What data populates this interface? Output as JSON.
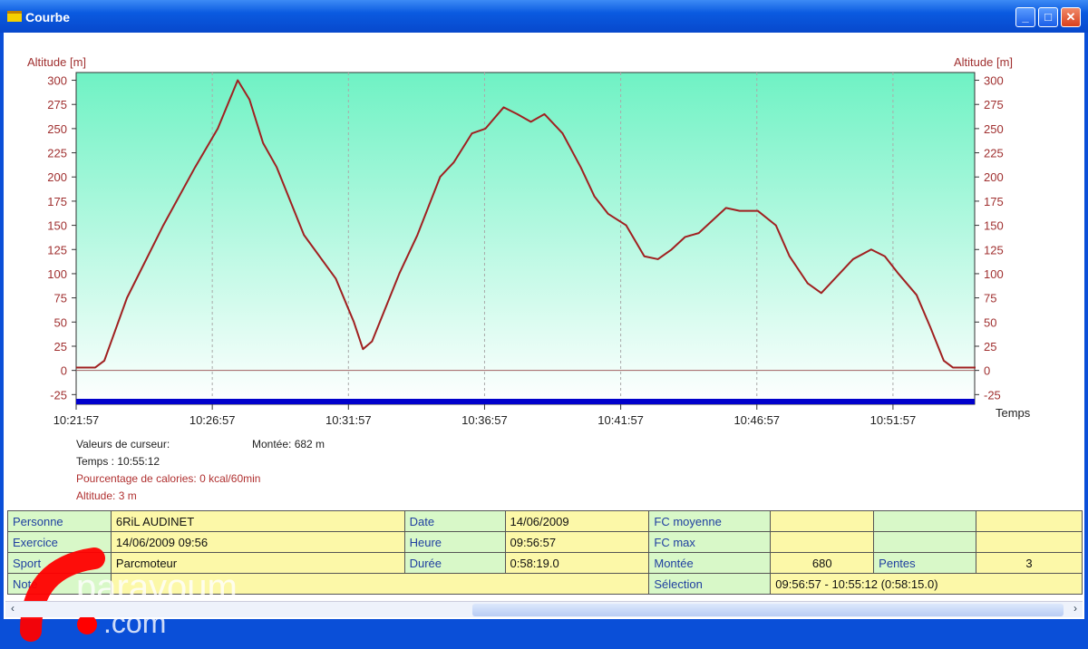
{
  "window": {
    "title": "Courbe",
    "buttons": [
      "minimize",
      "maximize",
      "close"
    ]
  },
  "chart_data": {
    "type": "line",
    "ylabel_left": "Altitude [m]",
    "ylabel_right": "Altitude [m]",
    "xlabel": "Temps",
    "ylim": [
      -35,
      308
    ],
    "yticks": [
      300,
      275,
      250,
      225,
      200,
      175,
      150,
      125,
      100,
      75,
      50,
      25,
      0,
      -25
    ],
    "xlim": [
      "10:21:57",
      "10:54:57"
    ],
    "xticks": [
      "10:21:57",
      "10:26:57",
      "10:31:57",
      "10:36:57",
      "10:41:57",
      "10:46:57",
      "10:51:57"
    ],
    "grid": "vertical dashed",
    "colors": {
      "line": "#a02020",
      "background_top": "#6ff2c4",
      "background_bottom": "#ffffff",
      "baseline": "#0000cc"
    },
    "series": [
      {
        "x": [
          "10:21:57",
          "10:22:39",
          "10:22:59",
          "10:23:49",
          "10:25:09",
          "10:26:19",
          "10:27:09",
          "10:27:53",
          "10:28:19",
          "10:28:49",
          "10:29:19",
          "10:30:19",
          "10:31:29",
          "10:32:09",
          "10:32:29",
          "10:32:49",
          "10:33:49",
          "10:34:29",
          "10:35:19",
          "10:35:49",
          "10:36:29",
          "10:36:59",
          "10:37:39",
          "10:38:09",
          "10:38:39",
          "10:39:09",
          "10:39:49",
          "10:40:29",
          "10:40:59",
          "10:41:29",
          "10:42:09",
          "10:42:49",
          "10:43:19",
          "10:43:49",
          "10:44:19",
          "10:44:49",
          "10:45:19",
          "10:45:49",
          "10:46:19",
          "10:46:59",
          "10:47:39",
          "10:48:09",
          "10:48:49",
          "10:49:19",
          "10:49:49",
          "10:50:29",
          "10:51:09",
          "10:51:39",
          "10:52:09",
          "10:52:49",
          "10:53:19",
          "10:53:49",
          "10:54:09",
          "10:54:59"
        ],
        "y": [
          3,
          3,
          10,
          75,
          150,
          210,
          250,
          300,
          280,
          235,
          210,
          140,
          95,
          50,
          22,
          30,
          100,
          140,
          200,
          215,
          245,
          250,
          272,
          265,
          257,
          265,
          245,
          210,
          180,
          162,
          150,
          118,
          115,
          125,
          138,
          142,
          155,
          168,
          165,
          165,
          150,
          118,
          90,
          80,
          95,
          115,
          125,
          118,
          100,
          78,
          45,
          10,
          3,
          3
        ]
      }
    ]
  },
  "cursor": {
    "header": "Valeurs de curseur:",
    "montee": "Montée: 682 m",
    "temps": "Temps : 10:55:12",
    "calories": "Pourcentage de calories: 0 kcal/60min",
    "altitude": "Altitude: 3 m"
  },
  "table": {
    "rows": [
      [
        "Personne",
        "6RiL AUDINET",
        "Date",
        "14/06/2009",
        "FC moyenne",
        "",
        "",
        ""
      ],
      [
        "Exercice",
        "14/06/2009 09:56",
        "Heure",
        "09:56:57",
        "FC max",
        "",
        "",
        ""
      ],
      [
        "Sport",
        "Parcmoteur",
        "Durée",
        "0:58:19.0",
        "Montée",
        "680",
        "Pentes",
        "3"
      ],
      [
        "Note",
        "",
        "",
        "",
        "Sélection",
        "09:56:57 - 10:55:12 (0:58:15.0)"
      ]
    ]
  },
  "watermark": "paravoum.com"
}
